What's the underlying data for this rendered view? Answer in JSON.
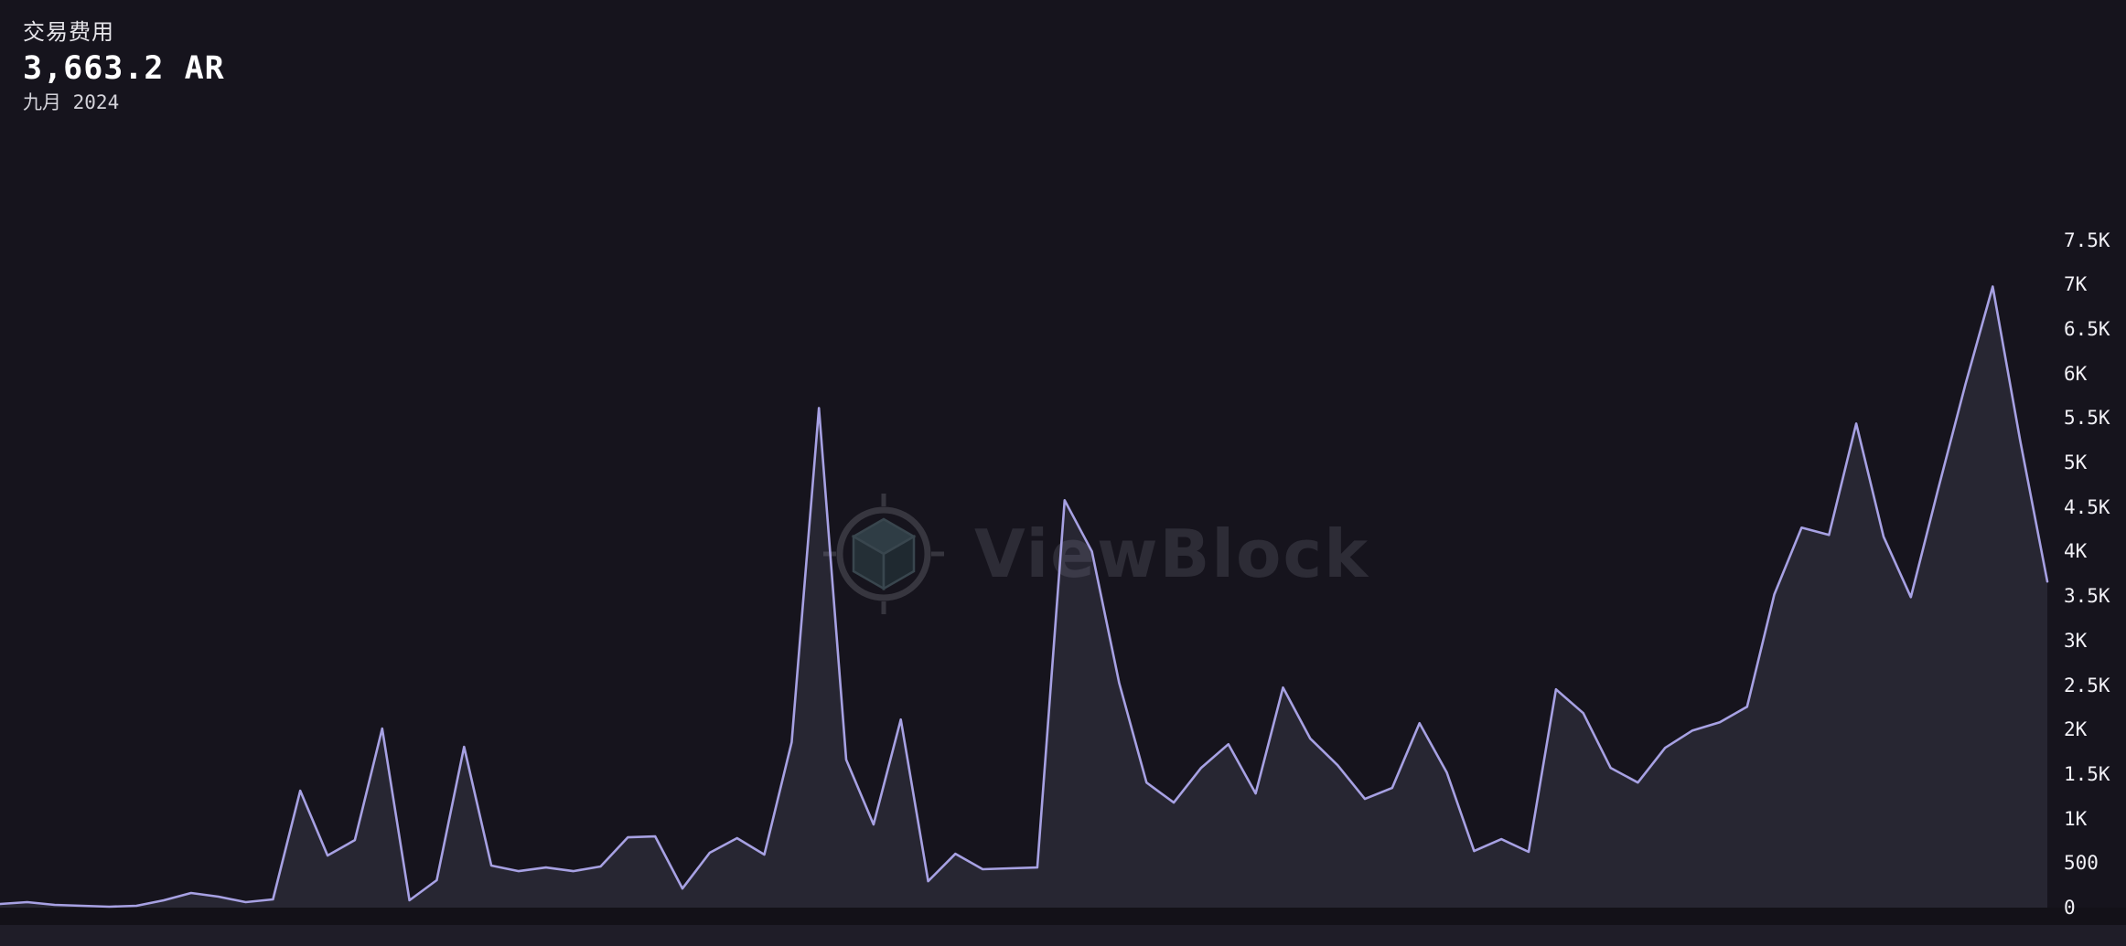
{
  "header": {
    "title": "交易费用",
    "value": "3,663.2 AR",
    "period": "九月 2024"
  },
  "watermark": {
    "text": "ViewBlock"
  },
  "colors": {
    "background": "#16141d",
    "line": "#a7a1e3",
    "area_fill": "rgba(151,151,186,0.14)",
    "tick_text": "#f1f0f5",
    "value_text": "#ffffff"
  },
  "chart_data": {
    "type": "area",
    "title": "交易费用",
    "unit": "AR",
    "selected_point": {
      "label": "九月 2024",
      "value": 3663.2
    },
    "ylim": [
      0,
      7500
    ],
    "grid": false,
    "legend_position": "none",
    "y_axis_side": "right",
    "y_ticks": [
      {
        "value": 0,
        "label": "0"
      },
      {
        "value": 500,
        "label": "500"
      },
      {
        "value": 1000,
        "label": "1K"
      },
      {
        "value": 1500,
        "label": "1.5K"
      },
      {
        "value": 2000,
        "label": "2K"
      },
      {
        "value": 2500,
        "label": "2.5K"
      },
      {
        "value": 3000,
        "label": "3K"
      },
      {
        "value": 3500,
        "label": "3.5K"
      },
      {
        "value": 4000,
        "label": "4K"
      },
      {
        "value": 4500,
        "label": "4.5K"
      },
      {
        "value": 5000,
        "label": "5K"
      },
      {
        "value": 5500,
        "label": "5.5K"
      },
      {
        "value": 6000,
        "label": "6K"
      },
      {
        "value": 6500,
        "label": "6.5K"
      },
      {
        "value": 7000,
        "label": "7K"
      },
      {
        "value": 7500,
        "label": "7.5K"
      }
    ],
    "values": [
      41,
      62,
      31,
      21,
      10,
      21,
      82,
      164,
      123,
      62,
      92,
      1313,
      585,
      759,
      2011,
      82,
      308,
      1806,
      472,
      410,
      451,
      410,
      462,
      790,
      800,
      215,
      616,
      780,
      595,
      1857,
      5612,
      1662,
      934,
      2113,
      297,
      605,
      431,
      441,
      451,
      4576,
      4001,
      2524,
      1405,
      1180,
      1570,
      1836,
      1282,
      2472,
      1898,
      1600,
      1221,
      1344,
      2072,
      1518,
      636,
      769,
      626,
      2452,
      2185,
      1570,
      1405,
      1795,
      1990,
      2082,
      2257,
      3519,
      4268,
      4186,
      5437,
      4166,
      3488,
      4699,
      5879,
      6976,
      5253,
      3663.2
    ]
  }
}
